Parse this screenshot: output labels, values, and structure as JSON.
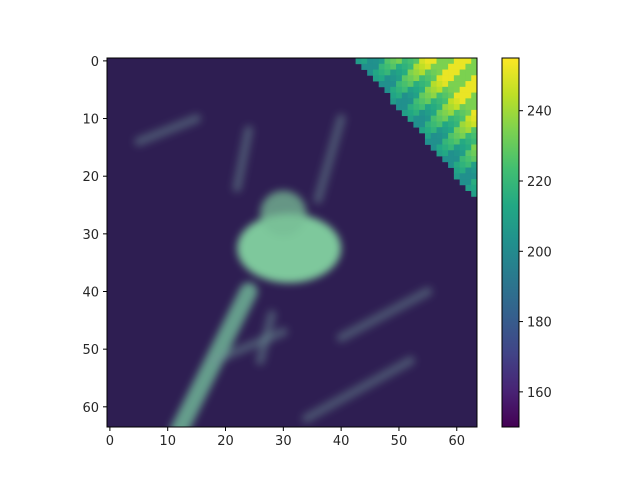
{
  "chart_data": {
    "type": "heatmap",
    "title": "",
    "xlabel": "",
    "ylabel": "",
    "shape": [
      64,
      64
    ],
    "xlim": [
      -0.5,
      63.5
    ],
    "ylim": [
      63.5,
      -0.5
    ],
    "x_ticks": [
      0,
      10,
      20,
      30,
      40,
      50,
      60
    ],
    "y_ticks": [
      0,
      10,
      20,
      30,
      40,
      50,
      60
    ],
    "colormap": "viridis",
    "colorbar": {
      "range": [
        150,
        255
      ],
      "ticks": [
        160,
        180,
        200,
        220,
        240
      ],
      "position": "right"
    },
    "background_level": 155,
    "features": [
      {
        "name": "bright-corner-band",
        "description": "bright diagonal region in the top-right corner",
        "peak_value": 250
      },
      {
        "name": "central-blob",
        "center": [
          31,
          33
        ],
        "peak_value": 215
      },
      {
        "name": "lower-left-vessel",
        "from": [
          10,
          63
        ],
        "to": [
          24,
          40
        ],
        "peak_value": 210
      }
    ]
  },
  "colors": {
    "viridis_low": "#440154",
    "viridis_mid": "#21908d",
    "viridis_high": "#fde725",
    "axis": "#000000"
  }
}
